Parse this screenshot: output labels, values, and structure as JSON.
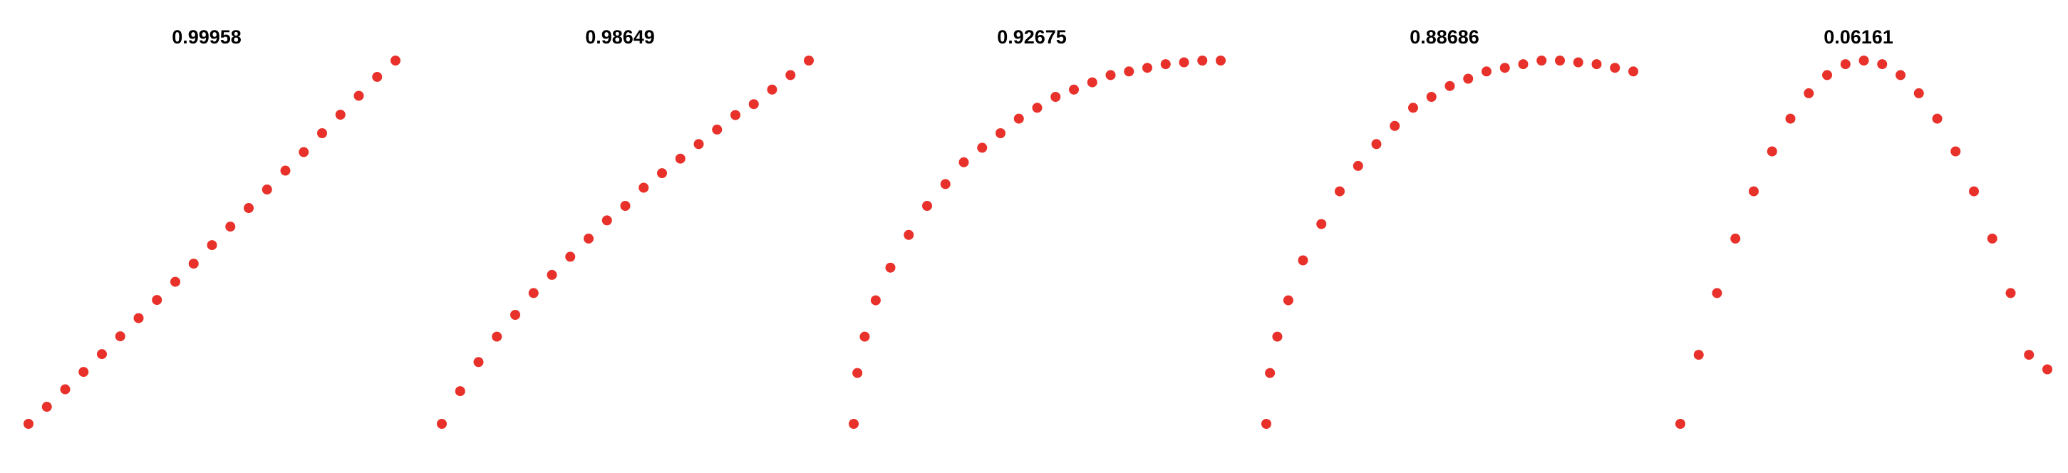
{
  "colors": {
    "point": "#e8312a",
    "background": "#ffffff",
    "title": "#000000"
  },
  "chart_data": [
    {
      "type": "scatter",
      "title": "0.99958",
      "x": [
        0.0,
        0.05,
        0.1,
        0.15,
        0.2,
        0.25,
        0.3,
        0.35,
        0.4,
        0.45,
        0.5,
        0.55,
        0.6,
        0.65,
        0.7,
        0.75,
        0.8,
        0.85,
        0.9,
        0.95,
        1.0
      ],
      "y": [
        0.0,
        0.047,
        0.095,
        0.143,
        0.192,
        0.241,
        0.291,
        0.341,
        0.391,
        0.441,
        0.492,
        0.543,
        0.594,
        0.645,
        0.697,
        0.748,
        0.8,
        0.851,
        0.903,
        0.955,
        1.0
      ],
      "xlim": [
        0,
        1
      ],
      "ylim": [
        0,
        1
      ],
      "axes_visible": false,
      "grid": false
    },
    {
      "type": "scatter",
      "title": "0.98649",
      "x": [
        0.0,
        0.05,
        0.1,
        0.15,
        0.2,
        0.25,
        0.3,
        0.35,
        0.4,
        0.45,
        0.5,
        0.55,
        0.6,
        0.65,
        0.7,
        0.75,
        0.8,
        0.85,
        0.9,
        0.95,
        1.0
      ],
      "y": [
        0.0,
        0.09,
        0.17,
        0.24,
        0.3,
        0.36,
        0.41,
        0.46,
        0.51,
        0.56,
        0.6,
        0.65,
        0.69,
        0.73,
        0.77,
        0.81,
        0.85,
        0.88,
        0.92,
        0.96,
        1.0
      ],
      "xlim": [
        0,
        1
      ],
      "ylim": [
        0,
        1
      ],
      "axes_visible": false,
      "grid": false
    },
    {
      "type": "scatter",
      "title": "0.92675",
      "x": [
        0.0,
        0.01,
        0.03,
        0.06,
        0.1,
        0.15,
        0.2,
        0.25,
        0.3,
        0.35,
        0.4,
        0.45,
        0.5,
        0.55,
        0.6,
        0.65,
        0.7,
        0.75,
        0.8,
        0.85,
        0.9,
        0.95,
        1.0
      ],
      "y": [
        0.0,
        0.14,
        0.24,
        0.34,
        0.43,
        0.52,
        0.6,
        0.66,
        0.72,
        0.76,
        0.8,
        0.84,
        0.87,
        0.9,
        0.92,
        0.94,
        0.96,
        0.97,
        0.98,
        0.99,
        0.995,
        1.0,
        1.0
      ],
      "xlim": [
        0,
        1
      ],
      "ylim": [
        0,
        1
      ],
      "axes_visible": false,
      "grid": false
    },
    {
      "type": "scatter",
      "title": "0.88686",
      "x": [
        0.0,
        0.01,
        0.03,
        0.06,
        0.1,
        0.15,
        0.2,
        0.25,
        0.3,
        0.35,
        0.4,
        0.45,
        0.5,
        0.55,
        0.6,
        0.65,
        0.7,
        0.75,
        0.8,
        0.85,
        0.9,
        0.95,
        1.0
      ],
      "y": [
        0.0,
        0.14,
        0.24,
        0.34,
        0.45,
        0.55,
        0.64,
        0.71,
        0.77,
        0.82,
        0.87,
        0.9,
        0.93,
        0.95,
        0.97,
        0.98,
        0.99,
        1.0,
        1.0,
        0.995,
        0.99,
        0.98,
        0.97
      ],
      "xlim": [
        0,
        1
      ],
      "ylim": [
        0,
        1
      ],
      "axes_visible": false,
      "grid": false
    },
    {
      "type": "scatter",
      "title": "0.06161",
      "x": [
        0.0,
        0.05,
        0.1,
        0.15,
        0.2,
        0.25,
        0.3,
        0.35,
        0.4,
        0.45,
        0.5,
        0.55,
        0.6,
        0.65,
        0.7,
        0.75,
        0.8,
        0.85,
        0.9,
        0.95,
        1.0
      ],
      "y": [
        0.0,
        0.19,
        0.36,
        0.51,
        0.64,
        0.75,
        0.84,
        0.91,
        0.96,
        0.99,
        1.0,
        0.99,
        0.96,
        0.91,
        0.84,
        0.75,
        0.64,
        0.51,
        0.36,
        0.19,
        0.15
      ],
      "xlim": [
        0,
        1
      ],
      "ylim": [
        0,
        1
      ],
      "axes_visible": false,
      "grid": false
    }
  ]
}
